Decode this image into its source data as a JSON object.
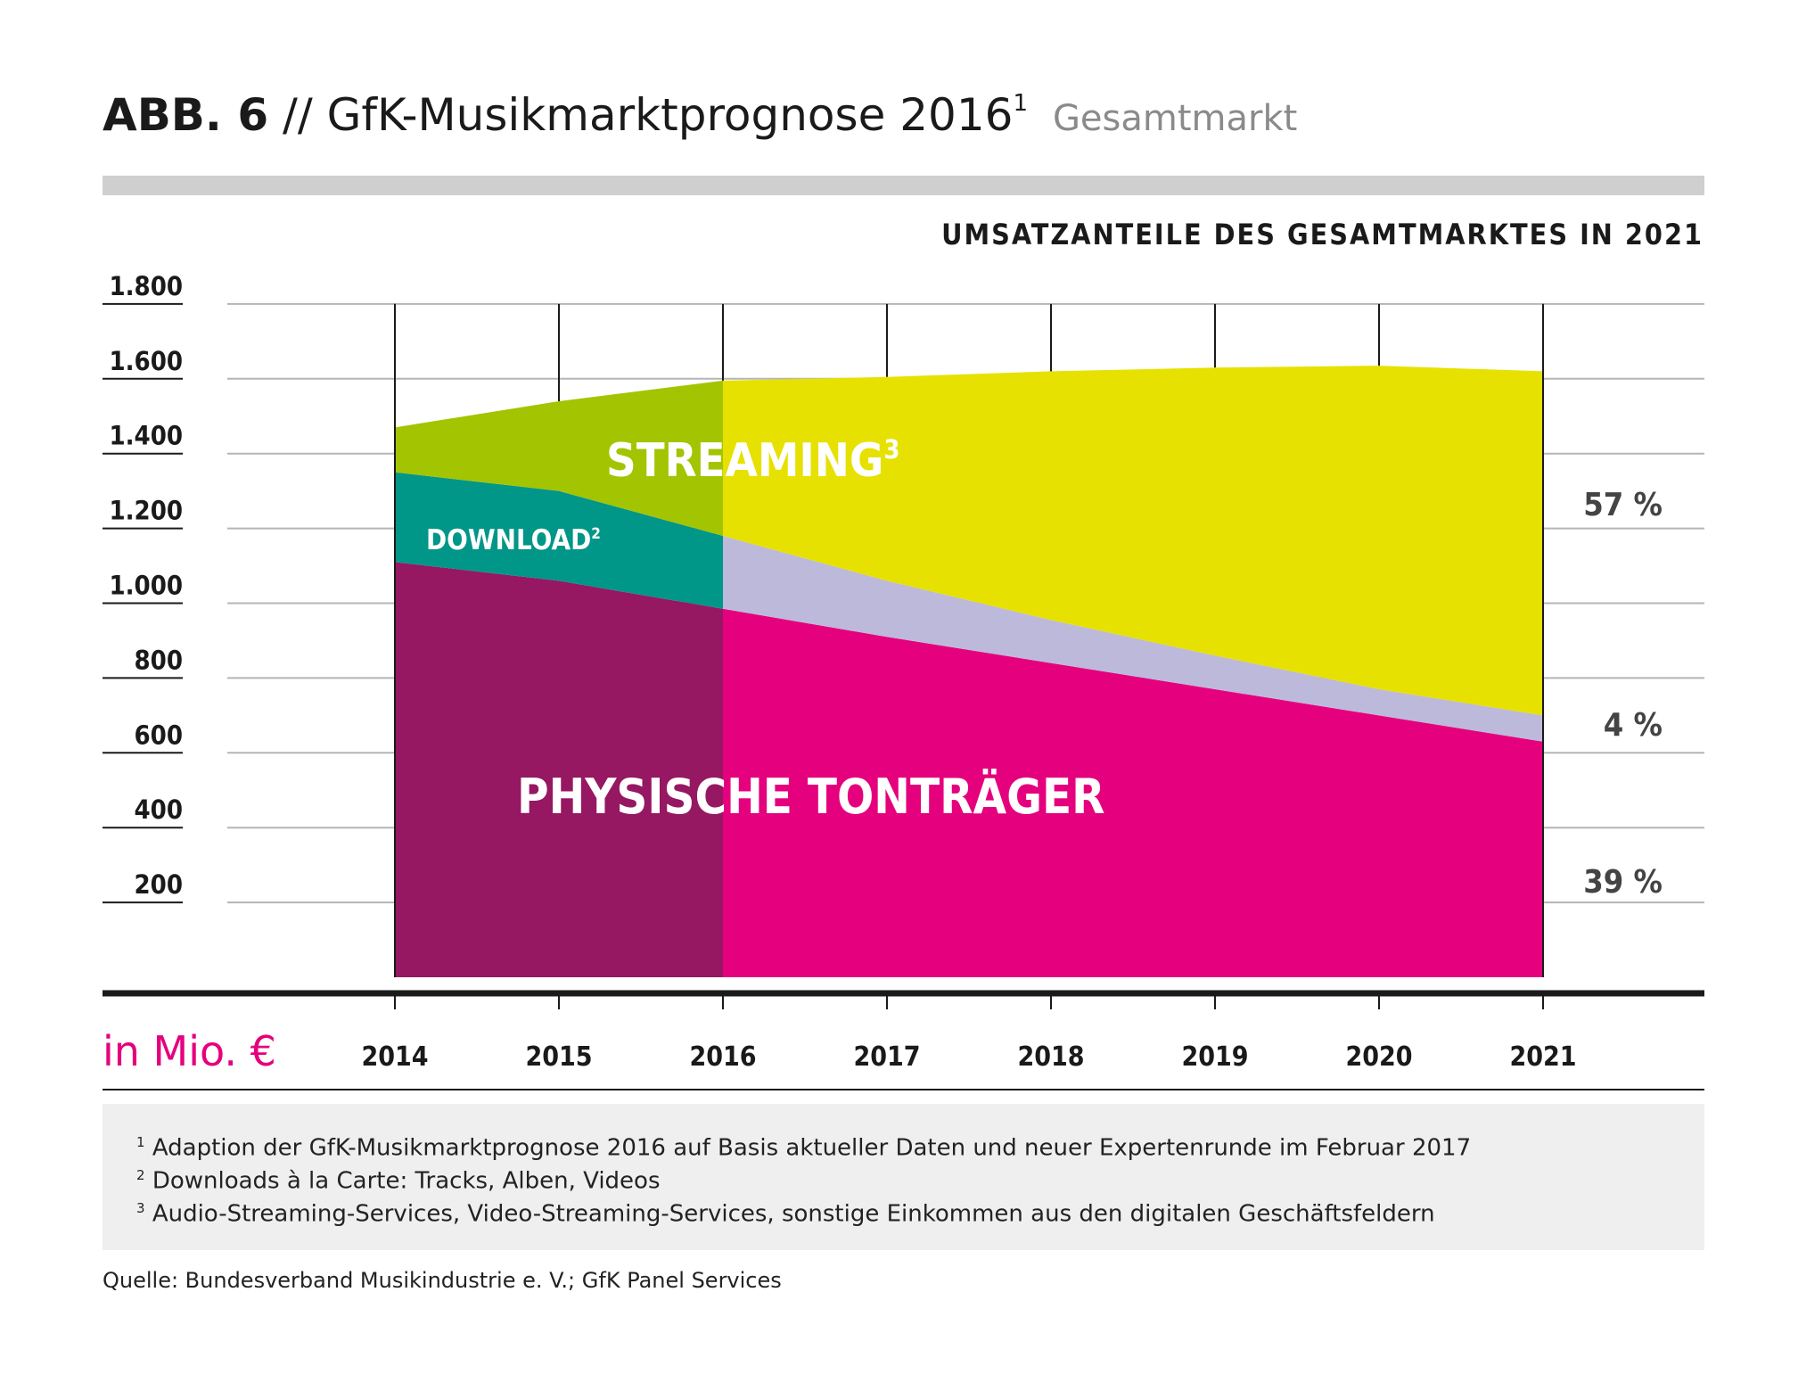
{
  "header": {
    "abb": "ABB. 6",
    "title": "// GfK-Musikmarktprognose 2016",
    "title_sup": "1",
    "subtitle": "Gesamtmarkt"
  },
  "share_title": "UMSATZANTEILE DES GESAMTMARKTES IN 2021",
  "unit_label": "in Mio. €",
  "chart_data": {
    "type": "area",
    "stacked": true,
    "x": [
      "2014",
      "2015",
      "2016",
      "2017",
      "2018",
      "2019",
      "2020",
      "2021"
    ],
    "y_ticks": [
      "200",
      "400",
      "600",
      "800",
      "1.000",
      "1.200",
      "1.400",
      "1.600",
      "1.800"
    ],
    "ylim": [
      0,
      1800
    ],
    "split_year": "2016",
    "series": [
      {
        "name": "PHYSISCHE TONTRÄGER",
        "values": [
          1110,
          1060,
          985,
          910,
          840,
          770,
          700,
          630
        ],
        "color_actual": "#961762",
        "color_forecast": "#e5007d"
      },
      {
        "name": "DOWNLOAD",
        "name_sup": "2",
        "values": [
          240,
          240,
          195,
          150,
          115,
          90,
          70,
          70
        ],
        "color_actual": "#009688",
        "color_forecast": "#bdb9db"
      },
      {
        "name": "STREAMING",
        "name_sup": "3",
        "values": [
          120,
          240,
          415,
          545,
          665,
          770,
          865,
          920
        ],
        "color_actual": "#a3c400",
        "color_forecast": "#e6e100"
      }
    ],
    "shares_2021": [
      {
        "label": "57 %",
        "value": 57
      },
      {
        "label": "4 %",
        "value": 4
      },
      {
        "label": "39 %",
        "value": 39
      }
    ],
    "grid": true
  },
  "footnotes": [
    {
      "sup": "1",
      "text": "Adaption der GfK-Musikmarktprognose 2016 auf Basis aktueller Daten und neuer Expertenrunde im Februar 2017"
    },
    {
      "sup": "2",
      "text": "Downloads à la Carte: Tracks, Alben, Videos"
    },
    {
      "sup": "3",
      "text": "Audio-Streaming-Services, Video-Streaming-Services, sonstige Einkommen aus den digitalen Geschäftsfeldern"
    }
  ],
  "source": "Quelle: Bundesverband Musikindustrie e. V.; GfK Panel Services"
}
